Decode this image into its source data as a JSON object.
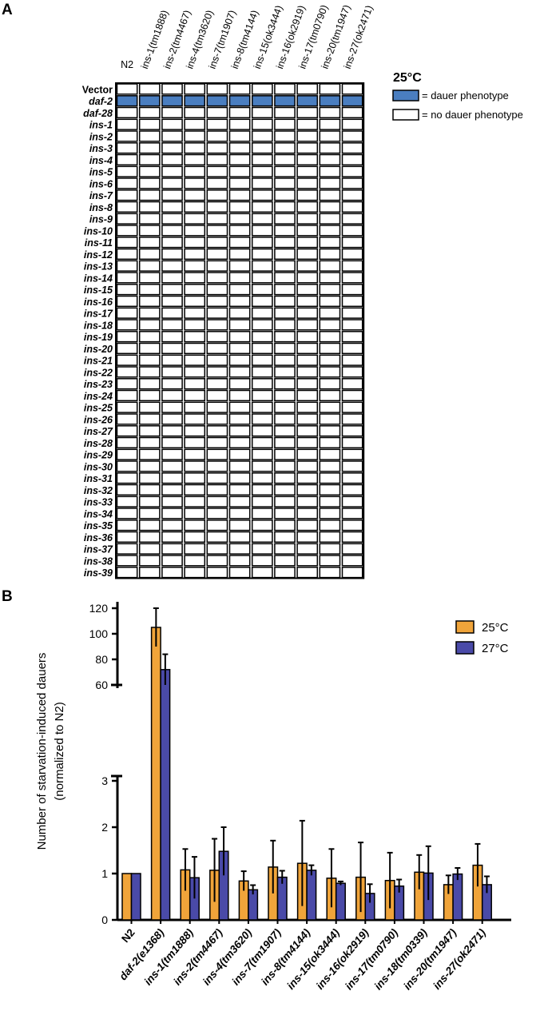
{
  "panel_a": {
    "letter": "A",
    "strains": [
      "N2",
      "ins-1(tm1888)",
      "ins-2(tm4467)",
      "ins-4(tm3620)",
      "ins-7(tm1907)",
      "ins-8(tm4144)",
      "ins-15(ok3444)",
      "ins-16(ok2919)",
      "ins-17(tm0790)",
      "ins-20(tm1947)",
      "ins-27(ok2471)"
    ],
    "rnai": [
      "Vector",
      "daf-2",
      "daf-28",
      "ins-1",
      "ins-2",
      "ins-3",
      "ins-4",
      "ins-5",
      "ins-6",
      "ins-7",
      "ins-8",
      "ins-9",
      "ins-10",
      "ins-11",
      "ins-12",
      "ins-13",
      "ins-14",
      "ins-15",
      "ins-16",
      "ins-17",
      "ins-18",
      "ins-19",
      "ins-20",
      "ins-21",
      "ins-22",
      "ins-23",
      "ins-24",
      "ins-25",
      "ins-26",
      "ins-27",
      "ins-28",
      "ins-29",
      "ins-30",
      "ins-31",
      "ins-32",
      "ins-33",
      "ins-34",
      "ins-35",
      "ins-36",
      "ins-37",
      "ins-38",
      "ins-39"
    ],
    "dauer_rows": [
      "daf-2"
    ],
    "legend": {
      "title": "25°C",
      "dauer": "= dauer phenotype",
      "no_dauer": "= no dauer phenotype"
    },
    "colors": {
      "dauer": "#4a7ec0",
      "no_dauer": "#ffffff"
    }
  },
  "chart_data": {
    "type": "bar",
    "panel_letter": "B",
    "ylabel_line1": "Number of starvation-induced dauers",
    "ylabel_line2": "(normalized to N2)",
    "categories": [
      "N2",
      "daf-2(e1368)",
      "ins-1(tm1888)",
      "ins-2(tm4467)",
      "ins-4(tm3620)",
      "ins-7(tm1907)",
      "ins-8(tm4144)",
      "ins-15(ok3444)",
      "ins-16(ok2919)",
      "ins-17(tm0790)",
      "ins-18(tm0339)",
      "ins-20(tm1947)",
      "ins-27(ok2471)"
    ],
    "series": [
      {
        "name": "25°C",
        "color": "#f0a43a",
        "values": [
          1,
          105,
          1.08,
          1.07,
          0.84,
          1.14,
          1.22,
          0.9,
          0.92,
          0.85,
          1.03,
          0.76,
          1.18
        ],
        "err": [
          0,
          15,
          0.45,
          0.68,
          0.21,
          0.57,
          0.92,
          0.63,
          0.75,
          0.6,
          0.37,
          0.2,
          0.46
        ]
      },
      {
        "name": "27°C",
        "color": "#4a4aa8",
        "values": [
          1,
          72,
          0.91,
          1.48,
          0.65,
          0.92,
          1.07,
          0.79,
          0.57,
          0.73,
          1.01,
          0.99,
          0.76
        ],
        "err": [
          0,
          12,
          0.45,
          0.52,
          0.1,
          0.14,
          0.11,
          0.04,
          0.2,
          0.14,
          0.58,
          0.13,
          0.18
        ]
      }
    ],
    "axis": {
      "lower_ticks": [
        "0",
        "1",
        "2",
        "3"
      ],
      "upper_ticks": [
        "60",
        "80",
        "100",
        "120"
      ],
      "lower_range": [
        0,
        3
      ],
      "upper_range": [
        60,
        120
      ],
      "broken": true
    },
    "grid": false,
    "legend_position": "top-right"
  }
}
